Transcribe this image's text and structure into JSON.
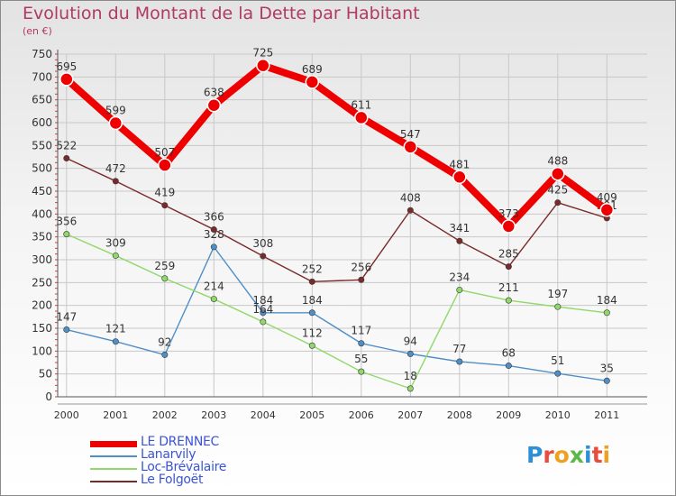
{
  "header": {
    "title": "Evolution du Montant de la Dette par Habitant",
    "subtitle": "(en €)"
  },
  "logo": {
    "text": "Proxiti",
    "letter_colors": [
      "#2d8fd6",
      "#e84c3d",
      "#f0a020",
      "#5cb848",
      "#2d8fd6",
      "#e84c3d",
      "#f0a020"
    ]
  },
  "chart_data": {
    "type": "line",
    "title": "Evolution du Montant de la Dette par Habitant",
    "subtitle": "(en €)",
    "xlabel": "",
    "ylabel": "",
    "x": [
      "2000",
      "2001",
      "2002",
      "2003",
      "2004",
      "2005",
      "2006",
      "2007",
      "2008",
      "2009",
      "2010",
      "2011"
    ],
    "ylim": [
      0,
      750
    ],
    "yticks": [
      0,
      50,
      100,
      150,
      200,
      250,
      300,
      350,
      400,
      450,
      500,
      550,
      600,
      650,
      700,
      750
    ],
    "grid": true,
    "legend_position": "bottom-left",
    "series": [
      {
        "name": "LE DRENNEC",
        "color": "#ee0000",
        "values": [
          695,
          599,
          507,
          638,
          725,
          689,
          611,
          547,
          481,
          373,
          488,
          409
        ]
      },
      {
        "name": "Lanarvily",
        "color": "#4f8fc8",
        "values": [
          147,
          121,
          92,
          328,
          184,
          184,
          117,
          94,
          77,
          68,
          51,
          35
        ]
      },
      {
        "name": "Loc-Brévalaire",
        "color": "#90d86a",
        "values": [
          356,
          309,
          259,
          214,
          164,
          112,
          55,
          18,
          234,
          211,
          197,
          184
        ]
      },
      {
        "name": "Le Folgoët",
        "color": "#7a2a2a",
        "values": [
          522,
          472,
          419,
          366,
          308,
          252,
          256,
          408,
          341,
          285,
          425,
          391
        ]
      }
    ]
  }
}
